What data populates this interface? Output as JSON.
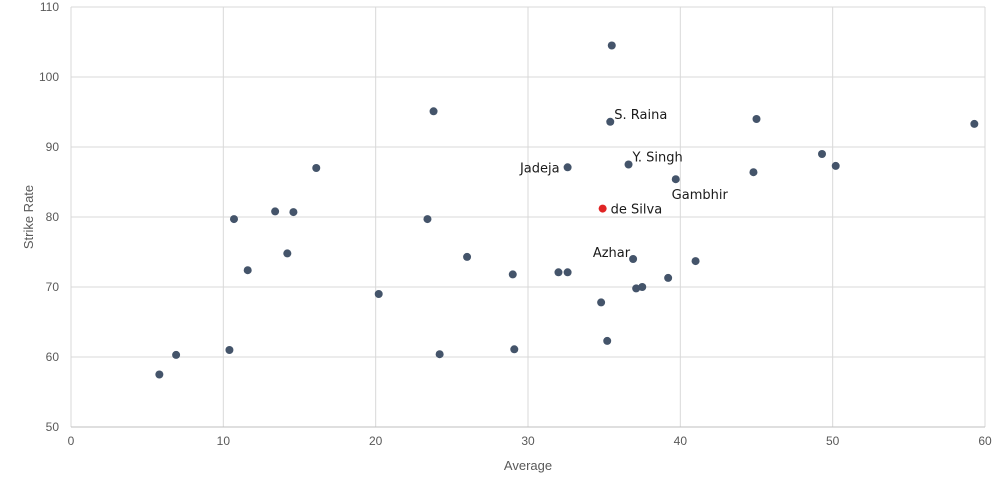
{
  "chart_data": {
    "type": "scatter",
    "xlabel": "Average",
    "ylabel": "Strike Rate",
    "xlim": [
      0,
      60
    ],
    "ylim": [
      50,
      110
    ],
    "x_ticks": [
      0,
      10,
      20,
      30,
      40,
      50,
      60
    ],
    "y_ticks": [
      50,
      60,
      70,
      80,
      90,
      100,
      110
    ],
    "grid": true,
    "series": [
      {
        "color": "#44546a",
        "points": [
          {
            "x": 5.8,
            "y": 57.5
          },
          {
            "x": 6.9,
            "y": 60.3
          },
          {
            "x": 10.4,
            "y": 61.0
          },
          {
            "x": 10.7,
            "y": 79.7
          },
          {
            "x": 11.6,
            "y": 72.4
          },
          {
            "x": 13.4,
            "y": 80.8
          },
          {
            "x": 14.2,
            "y": 74.8
          },
          {
            "x": 14.6,
            "y": 80.7
          },
          {
            "x": 16.1,
            "y": 87.0
          },
          {
            "x": 20.2,
            "y": 69.0
          },
          {
            "x": 23.4,
            "y": 79.7
          },
          {
            "x": 23.8,
            "y": 95.1
          },
          {
            "x": 24.2,
            "y": 60.4
          },
          {
            "x": 26.0,
            "y": 74.3
          },
          {
            "x": 29.0,
            "y": 71.8
          },
          {
            "x": 29.1,
            "y": 61.1
          },
          {
            "x": 32.0,
            "y": 72.1
          },
          {
            "x": 32.6,
            "y": 72.1
          },
          {
            "x": 32.6,
            "y": 87.1,
            "label": "Jadeja",
            "label_side": "left"
          },
          {
            "x": 34.8,
            "y": 67.8
          },
          {
            "x": 35.2,
            "y": 62.3
          },
          {
            "x": 35.4,
            "y": 93.6,
            "label": "S. Raina",
            "label_side": "upper-right"
          },
          {
            "x": 35.5,
            "y": 104.5
          },
          {
            "x": 36.6,
            "y": 87.5,
            "label": "Y. Singh",
            "label_side": "upper-right"
          },
          {
            "x": 36.9,
            "y": 74.0,
            "label": "Azhar",
            "label_side": "upper-left"
          },
          {
            "x": 37.1,
            "y": 69.8
          },
          {
            "x": 37.5,
            "y": 70.0
          },
          {
            "x": 39.2,
            "y": 71.3
          },
          {
            "x": 39.7,
            "y": 85.4,
            "label": "Gambhir",
            "label_side": "below"
          },
          {
            "x": 41.0,
            "y": 73.7
          },
          {
            "x": 44.8,
            "y": 86.4
          },
          {
            "x": 45.0,
            "y": 94.0
          },
          {
            "x": 49.3,
            "y": 89.0
          },
          {
            "x": 50.2,
            "y": 87.3
          },
          {
            "x": 59.3,
            "y": 93.3
          }
        ]
      },
      {
        "color": "#e02424",
        "points": [
          {
            "x": 34.9,
            "y": 81.2,
            "label": "de Silva",
            "label_side": "right"
          }
        ]
      }
    ],
    "colors": {
      "grid": "#d9d9d9",
      "axis": "#bfbfbf",
      "tick_text": "#595959",
      "annotation_text": "#1a1a1a"
    }
  }
}
